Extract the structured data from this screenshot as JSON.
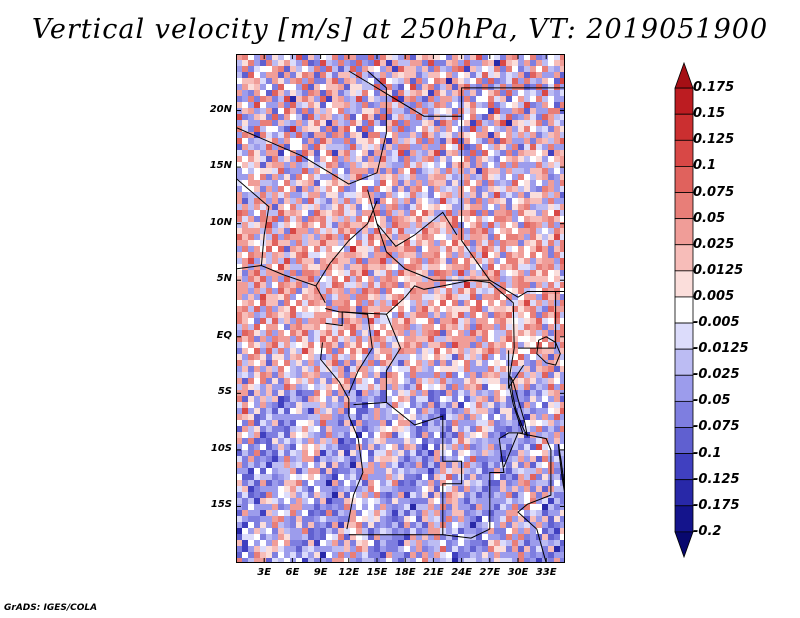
{
  "title": "Vertical velocity [m/s] at 250hPa, VT: 2019051900",
  "footer": "GrADS: IGES/COLA",
  "chart_data": {
    "type": "heatmap",
    "variable": "Vertical velocity",
    "units": "m/s",
    "level": "250hPa",
    "valid_time": "2019051900",
    "lon_range": [
      0,
      35
    ],
    "lat_range": [
      -20,
      25
    ],
    "lat_ticks": [
      {
        "value": 20,
        "label": "20N"
      },
      {
        "value": 15,
        "label": "15N"
      },
      {
        "value": 10,
        "label": "10N"
      },
      {
        "value": 5,
        "label": "5N"
      },
      {
        "value": 0,
        "label": "EQ"
      },
      {
        "value": -5,
        "label": "5S"
      },
      {
        "value": -10,
        "label": "10S"
      },
      {
        "value": -15,
        "label": "15S"
      }
    ],
    "lon_ticks": [
      {
        "value": 3,
        "label": "3E"
      },
      {
        "value": 6,
        "label": "6E"
      },
      {
        "value": 9,
        "label": "9E"
      },
      {
        "value": 12,
        "label": "12E"
      },
      {
        "value": 15,
        "label": "15E"
      },
      {
        "value": 18,
        "label": "18E"
      },
      {
        "value": 21,
        "label": "21E"
      },
      {
        "value": 24,
        "label": "24E"
      },
      {
        "value": 27,
        "label": "27E"
      },
      {
        "value": 30,
        "label": "30E"
      },
      {
        "value": 33,
        "label": "33E"
      }
    ],
    "colorbar": {
      "labels": [
        "0.175",
        "0.15",
        "0.125",
        "0.1",
        "0.075",
        "0.05",
        "0.025",
        "0.0125",
        "0.005",
        "-0.005",
        "-0.0125",
        "-0.025",
        "-0.05",
        "-0.075",
        "-0.1",
        "-0.125",
        "-0.175",
        "-0.2"
      ],
      "colors": [
        "#a50f15",
        "#bc1c21",
        "#cb2f30",
        "#d84846",
        "#e0625d",
        "#e87e78",
        "#f09d98",
        "#f7bdb9",
        "#fbdedb",
        "#ffffff",
        "#dcdcfb",
        "#bcbcf3",
        "#9c9cec",
        "#7e7ee0",
        "#6060d0",
        "#4040c0",
        "#2828a8",
        "#14148c",
        "#08086e"
      ]
    },
    "cells": []
  }
}
